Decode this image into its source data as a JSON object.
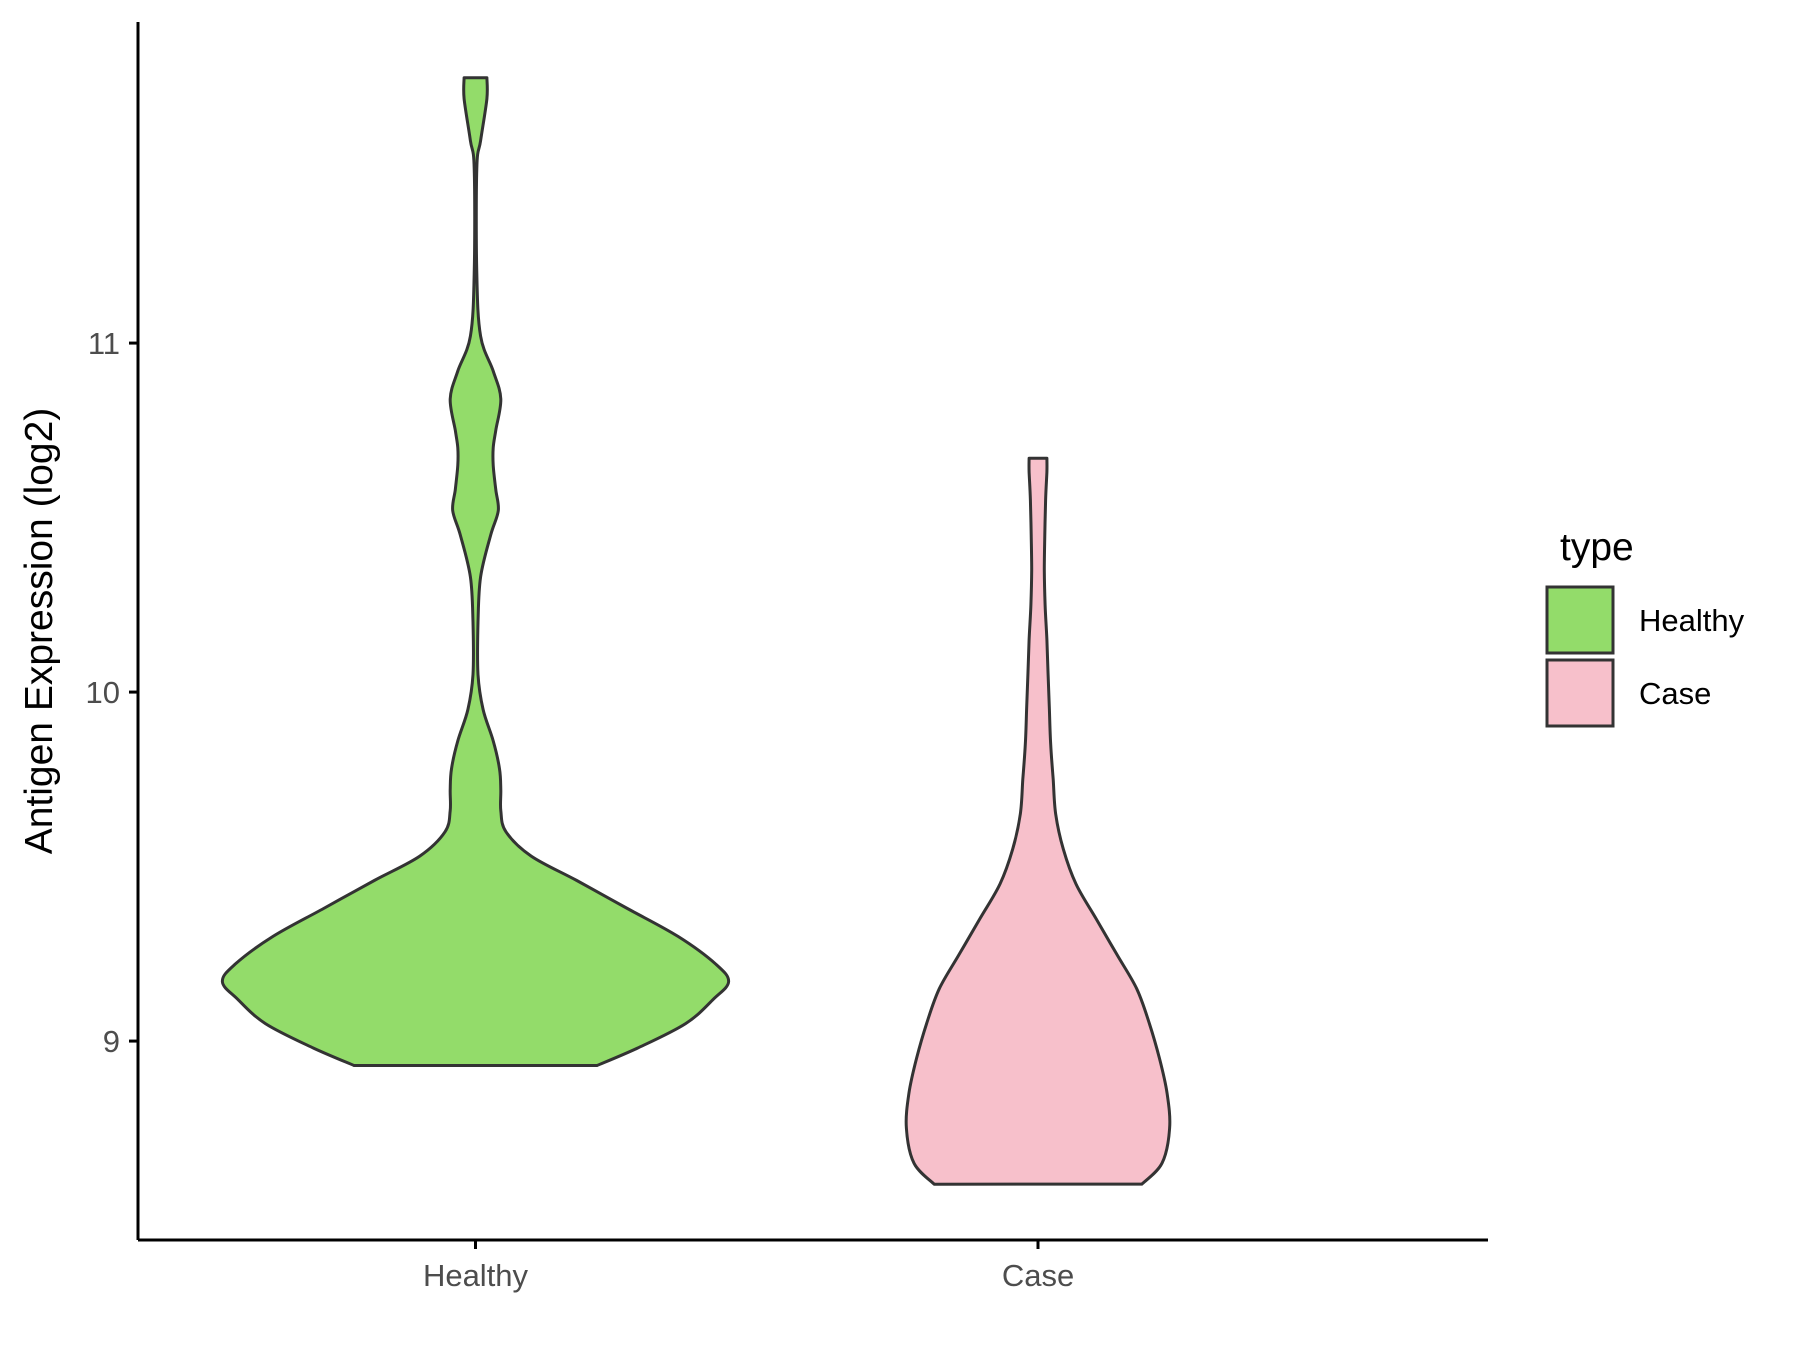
{
  "chart_data": {
    "type": "violin",
    "title": "",
    "xlabel": "",
    "ylabel": "Antigen Expression (log2)",
    "categories": [
      "Healthy",
      "Case"
    ],
    "yticks": [
      9,
      10,
      11
    ],
    "ylim": [
      8.43,
      11.92
    ],
    "grid": false,
    "legend": {
      "title": "type",
      "position": "right",
      "entries": [
        {
          "label": "Healthy",
          "color": "#93DC6A"
        },
        {
          "label": "Case",
          "color": "#F7C0CB"
        }
      ]
    },
    "series": [
      {
        "category": "Healthy",
        "color": "#93DC6A",
        "min": 8.93,
        "max": 11.76,
        "density_profile": [
          [
            8.93,
            0.48
          ],
          [
            8.98,
            0.64
          ],
          [
            9.05,
            0.83
          ],
          [
            9.12,
            0.94
          ],
          [
            9.17,
            1.0
          ],
          [
            9.22,
            0.95
          ],
          [
            9.3,
            0.8
          ],
          [
            9.38,
            0.6
          ],
          [
            9.46,
            0.4
          ],
          [
            9.53,
            0.22
          ],
          [
            9.6,
            0.12
          ],
          [
            9.66,
            0.1
          ],
          [
            9.72,
            0.1
          ],
          [
            9.78,
            0.095
          ],
          [
            9.86,
            0.07
          ],
          [
            9.95,
            0.03
          ],
          [
            10.05,
            0.01
          ],
          [
            10.2,
            0.01
          ],
          [
            10.33,
            0.02
          ],
          [
            10.45,
            0.06
          ],
          [
            10.52,
            0.09
          ],
          [
            10.58,
            0.08
          ],
          [
            10.65,
            0.07
          ],
          [
            10.7,
            0.07
          ],
          [
            10.75,
            0.08
          ],
          [
            10.84,
            0.1
          ],
          [
            10.92,
            0.07
          ],
          [
            11.02,
            0.02
          ],
          [
            11.2,
            0.005
          ],
          [
            11.5,
            0.005
          ],
          [
            11.58,
            0.02
          ],
          [
            11.7,
            0.045
          ],
          [
            11.76,
            0.045
          ]
        ]
      },
      {
        "category": "Case",
        "color": "#F7C0CB",
        "min": 8.59,
        "max": 10.67,
        "density_profile": [
          [
            8.59,
            0.41
          ],
          [
            8.65,
            0.49
          ],
          [
            8.75,
            0.52
          ],
          [
            8.85,
            0.51
          ],
          [
            8.95,
            0.48
          ],
          [
            9.05,
            0.44
          ],
          [
            9.15,
            0.39
          ],
          [
            9.25,
            0.31
          ],
          [
            9.35,
            0.23
          ],
          [
            9.45,
            0.15
          ],
          [
            9.55,
            0.1
          ],
          [
            9.65,
            0.07
          ],
          [
            9.75,
            0.06
          ],
          [
            9.85,
            0.05
          ],
          [
            9.95,
            0.045
          ],
          [
            10.05,
            0.04
          ],
          [
            10.15,
            0.035
          ],
          [
            10.25,
            0.028
          ],
          [
            10.35,
            0.025
          ],
          [
            10.45,
            0.027
          ],
          [
            10.55,
            0.03
          ],
          [
            10.63,
            0.035
          ],
          [
            10.67,
            0.035
          ]
        ]
      }
    ]
  }
}
